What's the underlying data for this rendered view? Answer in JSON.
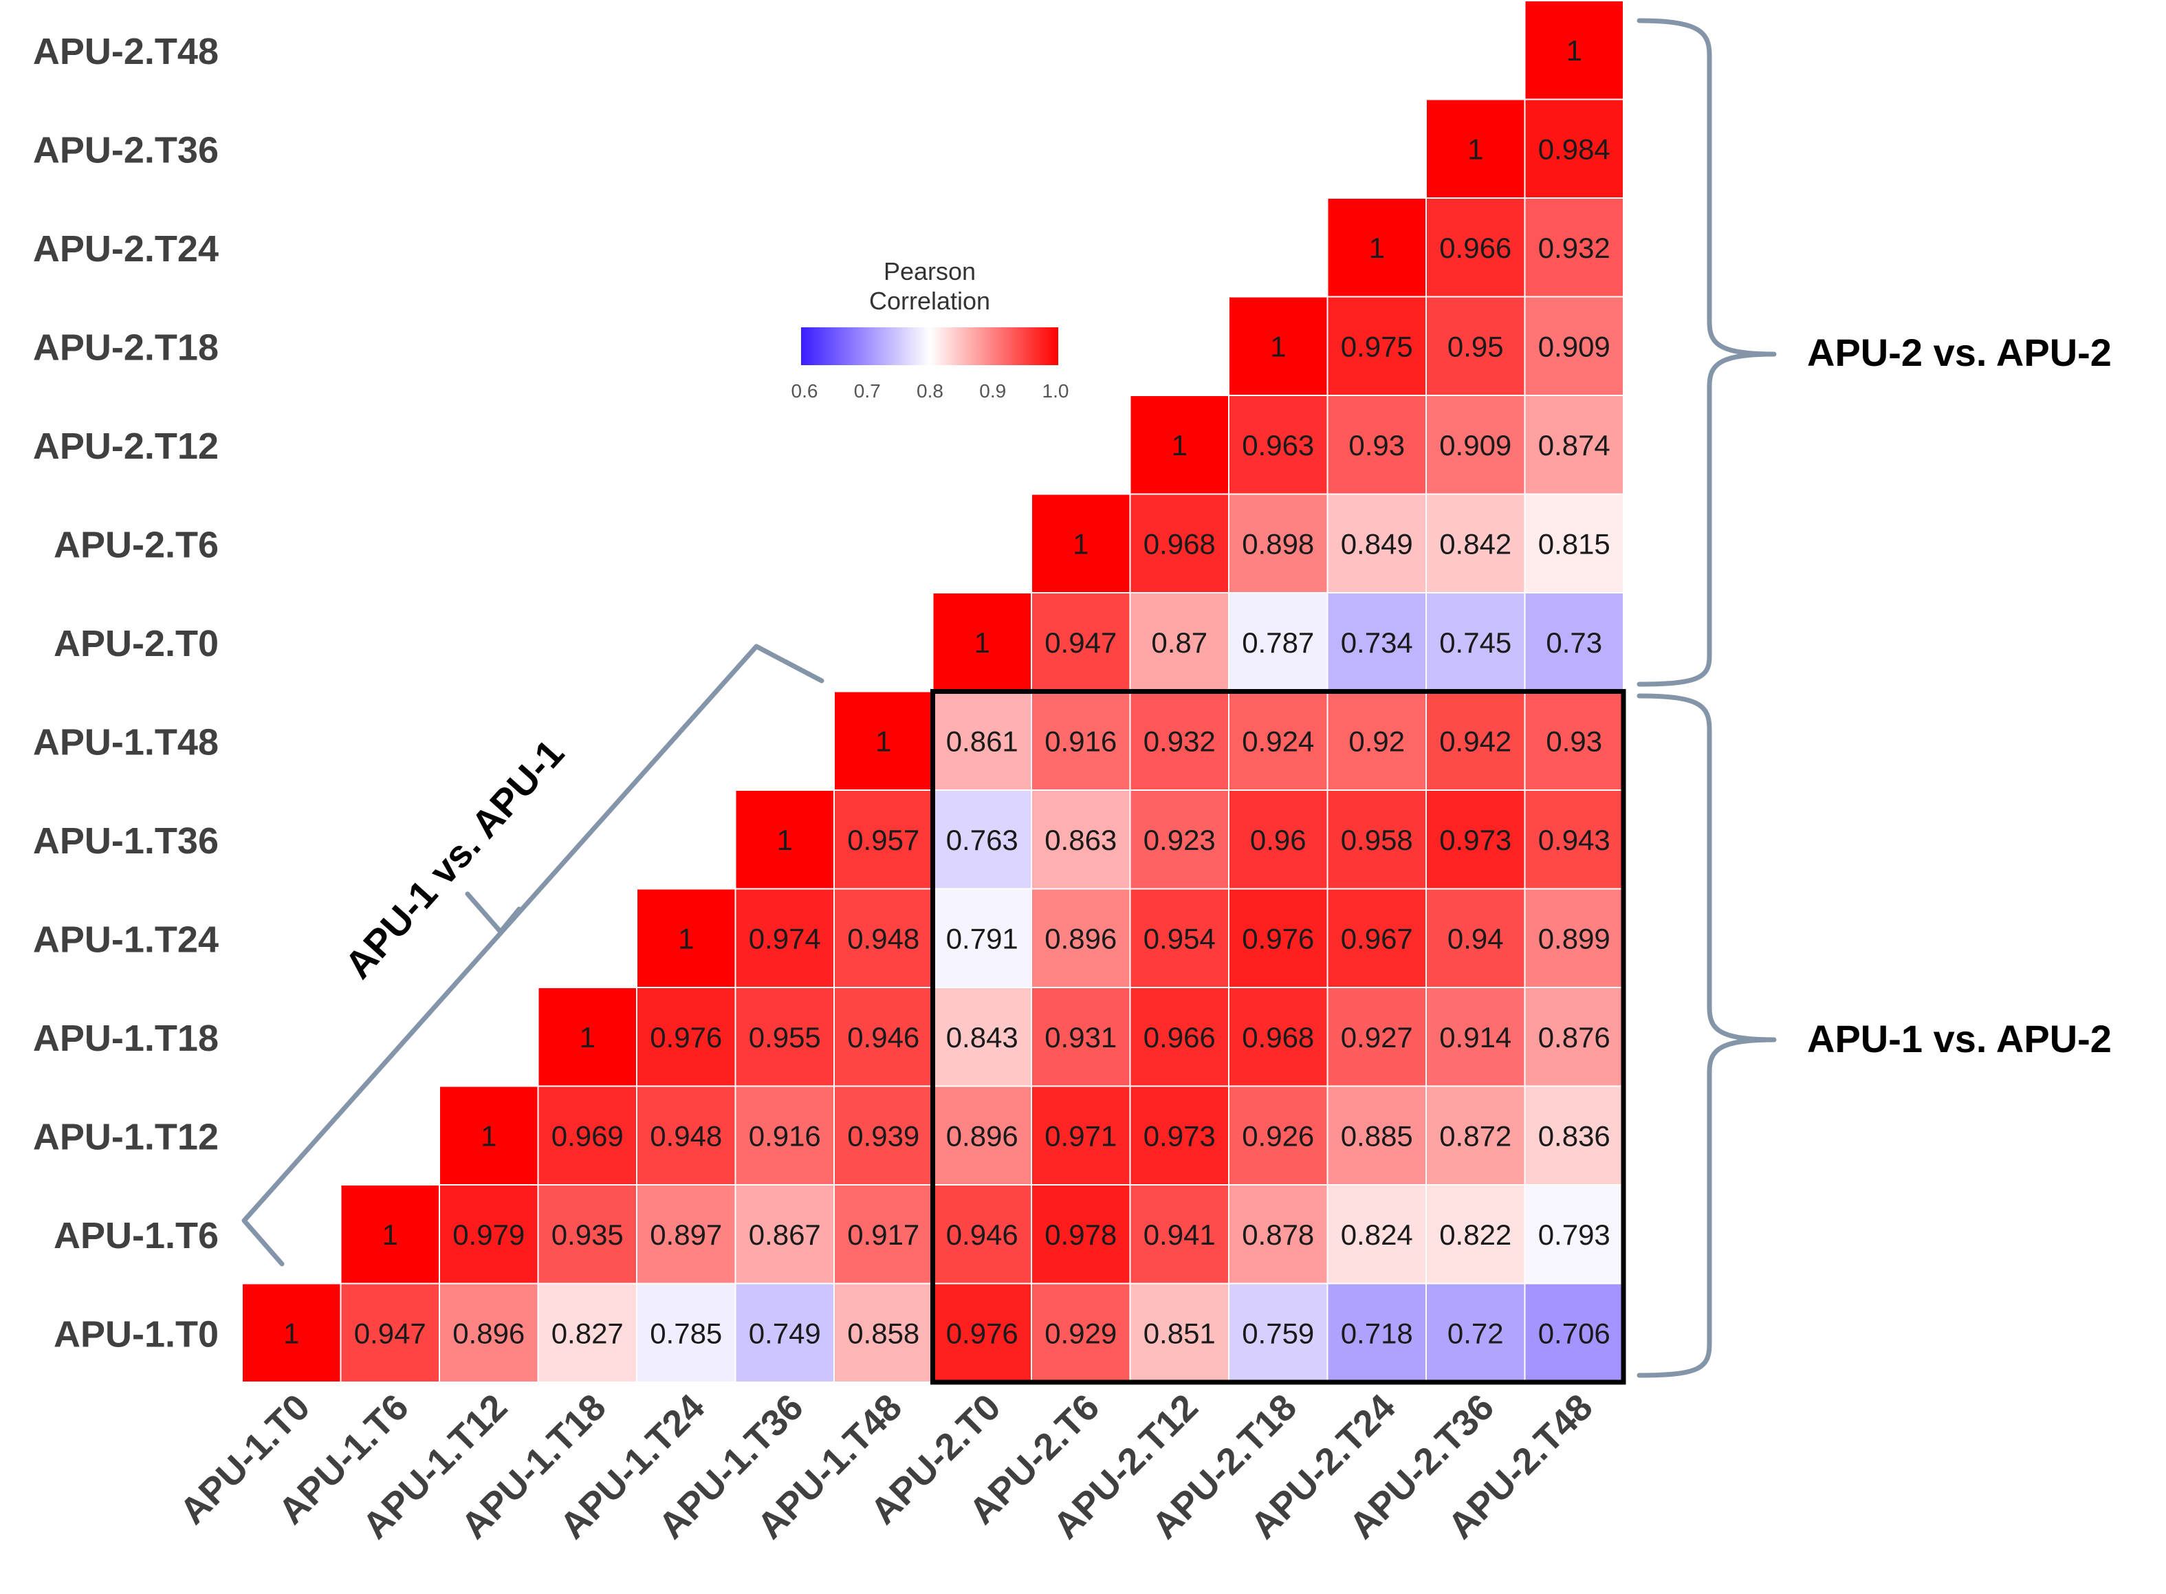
{
  "chart_data": {
    "type": "heatmap",
    "subtype": "lower-triangular correlation matrix",
    "labels": [
      "APU-1.T0",
      "APU-1.T6",
      "APU-1.T12",
      "APU-1.T18",
      "APU-1.T24",
      "APU-1.T36",
      "APU-1.T48",
      "APU-2.T0",
      "APU-2.T6",
      "APU-2.T12",
      "APU-2.T18",
      "APU-2.T24",
      "APU-2.T36",
      "APU-2.T48"
    ],
    "rows": [
      {
        "label": "APU-1.T0",
        "values": [
          "1",
          "0.947",
          "0.896",
          "0.827",
          "0.785",
          "0.749",
          "0.858",
          "0.976",
          "0.929",
          "0.851",
          "0.759",
          "0.718",
          "0.72",
          "0.706"
        ]
      },
      {
        "label": "APU-1.T6",
        "values": [
          "1",
          "0.979",
          "0.935",
          "0.897",
          "0.867",
          "0.917",
          "0.946",
          "0.978",
          "0.941",
          "0.878",
          "0.824",
          "0.822",
          "0.793"
        ]
      },
      {
        "label": "APU-1.T12",
        "values": [
          "1",
          "0.969",
          "0.948",
          "0.916",
          "0.939",
          "0.896",
          "0.971",
          "0.973",
          "0.926",
          "0.885",
          "0.872",
          "0.836"
        ]
      },
      {
        "label": "APU-1.T18",
        "values": [
          "1",
          "0.976",
          "0.955",
          "0.946",
          "0.843",
          "0.931",
          "0.966",
          "0.968",
          "0.927",
          "0.914",
          "0.876"
        ]
      },
      {
        "label": "APU-1.T24",
        "values": [
          "1",
          "0.974",
          "0.948",
          "0.791",
          "0.896",
          "0.954",
          "0.976",
          "0.967",
          "0.94",
          "0.899"
        ]
      },
      {
        "label": "APU-1.T36",
        "values": [
          "1",
          "0.957",
          "0.763",
          "0.863",
          "0.923",
          "0.96",
          "0.958",
          "0.973",
          "0.943"
        ]
      },
      {
        "label": "APU-1.T48",
        "values": [
          "1",
          "0.861",
          "0.916",
          "0.932",
          "0.924",
          "0.92",
          "0.942",
          "0.93"
        ]
      },
      {
        "label": "APU-2.T0",
        "values": [
          "1",
          "0.947",
          "0.87",
          "0.787",
          "0.734",
          "0.745",
          "0.73"
        ]
      },
      {
        "label": "APU-2.T6",
        "values": [
          "1",
          "0.968",
          "0.898",
          "0.849",
          "0.842",
          "0.815"
        ]
      },
      {
        "label": "APU-2.T12",
        "values": [
          "1",
          "0.963",
          "0.93",
          "0.909",
          "0.874"
        ]
      },
      {
        "label": "APU-2.T18",
        "values": [
          "1",
          "0.975",
          "0.95",
          "0.909"
        ]
      },
      {
        "label": "APU-2.T24",
        "values": [
          "1",
          "0.966",
          "0.932"
        ]
      },
      {
        "label": "APU-2.T36",
        "values": [
          "1",
          "0.984"
        ]
      },
      {
        "label": "APU-2.T48",
        "values": [
          "1"
        ]
      }
    ],
    "legend": {
      "title_line1": "Pearson",
      "title_line2": "Correlation",
      "ticks": [
        "0.6",
        "0.7",
        "0.8",
        "0.9",
        "1.0"
      ],
      "range": [
        0.6,
        1.0
      ],
      "colors": {
        "low": "#3b1cff",
        "mid": "#ffffff",
        "high": "#ff0000"
      }
    },
    "groups": [
      {
        "name": "APU-2 vs. APU-2"
      },
      {
        "name": "APU-1 vs. APU-2"
      },
      {
        "name": "APU-1 vs. APU-1"
      }
    ],
    "colors": {
      "bracket": "#8495aa",
      "box": "#000000",
      "label": "#404040"
    }
  }
}
